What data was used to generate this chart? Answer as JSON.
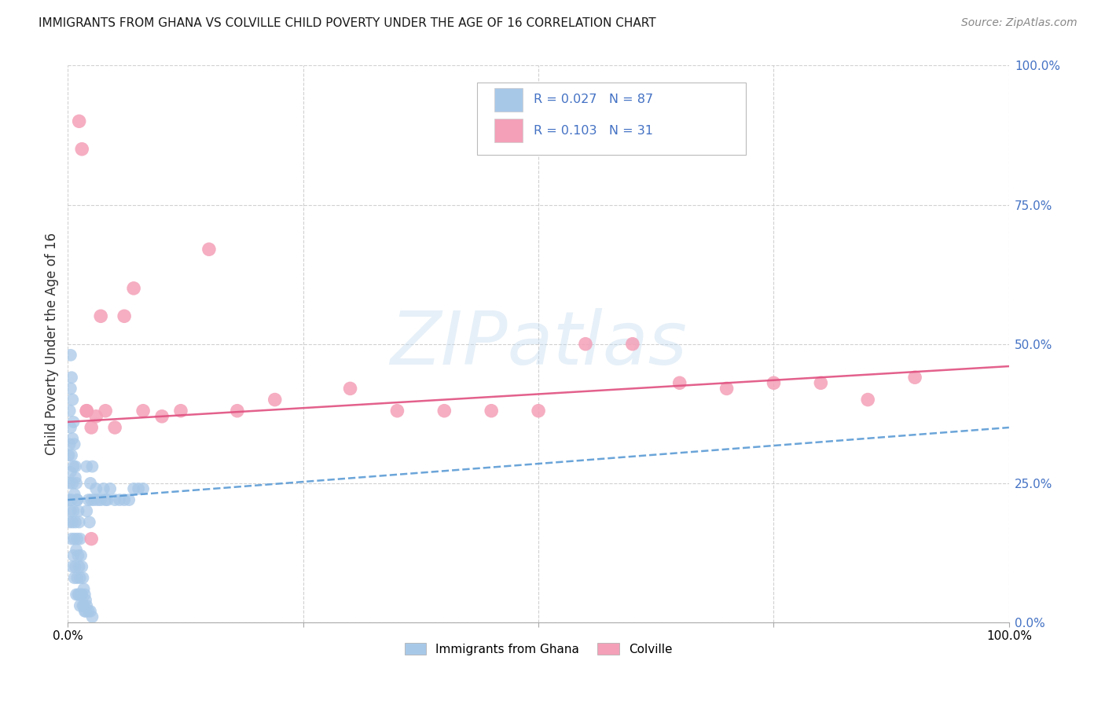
{
  "title": "IMMIGRANTS FROM GHANA VS COLVILLE CHILD POVERTY UNDER THE AGE OF 16 CORRELATION CHART",
  "source": "Source: ZipAtlas.com",
  "ylabel": "Child Poverty Under the Age of 16",
  "xlim": [
    0,
    1.0
  ],
  "ylim": [
    0,
    1.0
  ],
  "watermark": "ZIPatlas",
  "ghana_color": "#a8c8e8",
  "ghana_line_color": "#5b9bd5",
  "colville_color": "#f4a0b8",
  "colville_line_color": "#e05080",
  "background_color": "#ffffff",
  "ghana_x": [
    0.001,
    0.001,
    0.002,
    0.002,
    0.002,
    0.002,
    0.003,
    0.003,
    0.003,
    0.003,
    0.004,
    0.004,
    0.004,
    0.005,
    0.005,
    0.005,
    0.005,
    0.006,
    0.006,
    0.006,
    0.007,
    0.007,
    0.007,
    0.008,
    0.008,
    0.008,
    0.009,
    0.009,
    0.01,
    0.01,
    0.01,
    0.011,
    0.011,
    0.012,
    0.012,
    0.013,
    0.013,
    0.014,
    0.015,
    0.016,
    0.017,
    0.018,
    0.019,
    0.02,
    0.02,
    0.022,
    0.023,
    0.024,
    0.025,
    0.026,
    0.028,
    0.03,
    0.032,
    0.035,
    0.038,
    0.04,
    0.042,
    0.045,
    0.05,
    0.055,
    0.06,
    0.065,
    0.07,
    0.075,
    0.08,
    0.003,
    0.004,
    0.005,
    0.006,
    0.007,
    0.008,
    0.009,
    0.01,
    0.011,
    0.012,
    0.013,
    0.014,
    0.015,
    0.016,
    0.017,
    0.018,
    0.019,
    0.02,
    0.022,
    0.024,
    0.026
  ],
  "ghana_y": [
    0.22,
    0.3,
    0.18,
    0.25,
    0.32,
    0.38,
    0.2,
    0.27,
    0.35,
    0.42,
    0.15,
    0.22,
    0.3,
    0.1,
    0.18,
    0.25,
    0.33,
    0.12,
    0.2,
    0.28,
    0.08,
    0.15,
    0.23,
    0.1,
    0.18,
    0.26,
    0.05,
    0.13,
    0.08,
    0.15,
    0.22,
    0.05,
    0.12,
    0.05,
    0.1,
    0.03,
    0.08,
    0.05,
    0.05,
    0.03,
    0.03,
    0.02,
    0.02,
    0.2,
    0.28,
    0.22,
    0.18,
    0.25,
    0.22,
    0.28,
    0.22,
    0.24,
    0.22,
    0.22,
    0.24,
    0.22,
    0.22,
    0.24,
    0.22,
    0.22,
    0.22,
    0.22,
    0.24,
    0.24,
    0.24,
    0.48,
    0.44,
    0.4,
    0.36,
    0.32,
    0.28,
    0.25,
    0.22,
    0.2,
    0.18,
    0.15,
    0.12,
    0.1,
    0.08,
    0.06,
    0.05,
    0.04,
    0.03,
    0.02,
    0.02,
    0.01
  ],
  "ghana_line_x": [
    0.0,
    1.0
  ],
  "ghana_line_y": [
    0.22,
    0.35
  ],
  "colville_x": [
    0.012,
    0.015,
    0.02,
    0.025,
    0.03,
    0.035,
    0.04,
    0.05,
    0.06,
    0.07,
    0.08,
    0.1,
    0.12,
    0.15,
    0.18,
    0.22,
    0.3,
    0.35,
    0.4,
    0.45,
    0.5,
    0.55,
    0.6,
    0.65,
    0.7,
    0.75,
    0.8,
    0.85,
    0.9,
    0.02,
    0.025
  ],
  "colville_y": [
    0.9,
    0.85,
    0.38,
    0.35,
    0.37,
    0.55,
    0.38,
    0.35,
    0.55,
    0.6,
    0.38,
    0.37,
    0.38,
    0.67,
    0.38,
    0.4,
    0.42,
    0.38,
    0.38,
    0.38,
    0.38,
    0.5,
    0.5,
    0.43,
    0.42,
    0.43,
    0.43,
    0.4,
    0.44,
    0.38,
    0.15
  ],
  "colville_line_x": [
    0.0,
    1.0
  ],
  "colville_line_y": [
    0.36,
    0.46
  ]
}
